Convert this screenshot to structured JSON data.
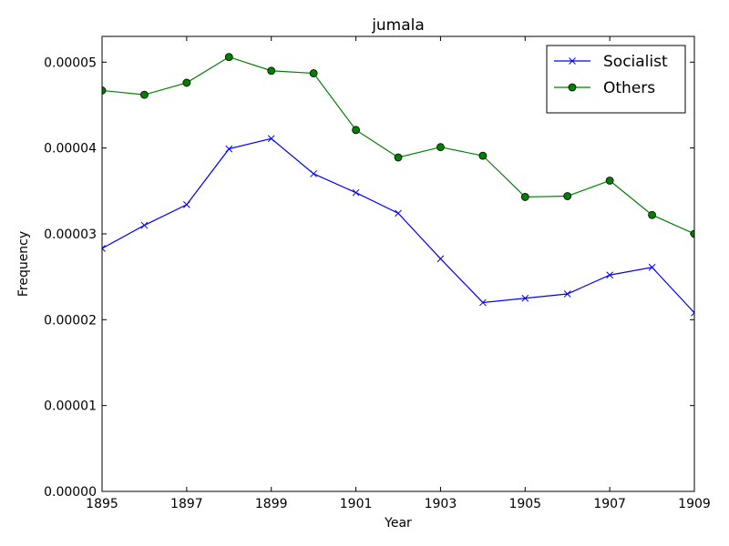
{
  "chart_data": {
    "type": "line",
    "title": "jumala",
    "xlabel": "Year",
    "ylabel": "Frequency",
    "xlim": [
      1895,
      1909
    ],
    "ylim": [
      0,
      5.3e-05
    ],
    "xticks": [
      1895,
      1897,
      1899,
      1901,
      1903,
      1905,
      1907,
      1909
    ],
    "xtick_labels": [
      "1895",
      "1897",
      "1899",
      "1901",
      "1903",
      "1905",
      "1907",
      "1909"
    ],
    "yticks": [
      0,
      1e-05,
      2e-05,
      3e-05,
      4e-05,
      5e-05
    ],
    "ytick_labels": [
      "0.00000",
      "0.00001",
      "0.00002",
      "0.00003",
      "0.00004",
      "0.00005"
    ],
    "x": [
      1895,
      1896,
      1897,
      1898,
      1899,
      1900,
      1901,
      1902,
      1903,
      1904,
      1905,
      1906,
      1907,
      1908,
      1909
    ],
    "legend_position": "top-right",
    "grid": false,
    "series": [
      {
        "name": "Socialist",
        "color": "#0000ff",
        "marker": "x",
        "values": [
          2.83e-05,
          3.1e-05,
          3.34e-05,
          3.99e-05,
          4.11e-05,
          3.7e-05,
          3.48e-05,
          3.24e-05,
          2.71e-05,
          2.2e-05,
          2.25e-05,
          2.3e-05,
          2.52e-05,
          2.61e-05,
          2.08e-05
        ]
      },
      {
        "name": "Others",
        "color": "#008000",
        "marker": "circle",
        "values": [
          4.67e-05,
          4.62e-05,
          4.76e-05,
          5.06e-05,
          4.9e-05,
          4.87e-05,
          4.21e-05,
          3.89e-05,
          4.01e-05,
          3.91e-05,
          3.43e-05,
          3.44e-05,
          3.62e-05,
          3.22e-05,
          3e-05
        ]
      }
    ]
  }
}
